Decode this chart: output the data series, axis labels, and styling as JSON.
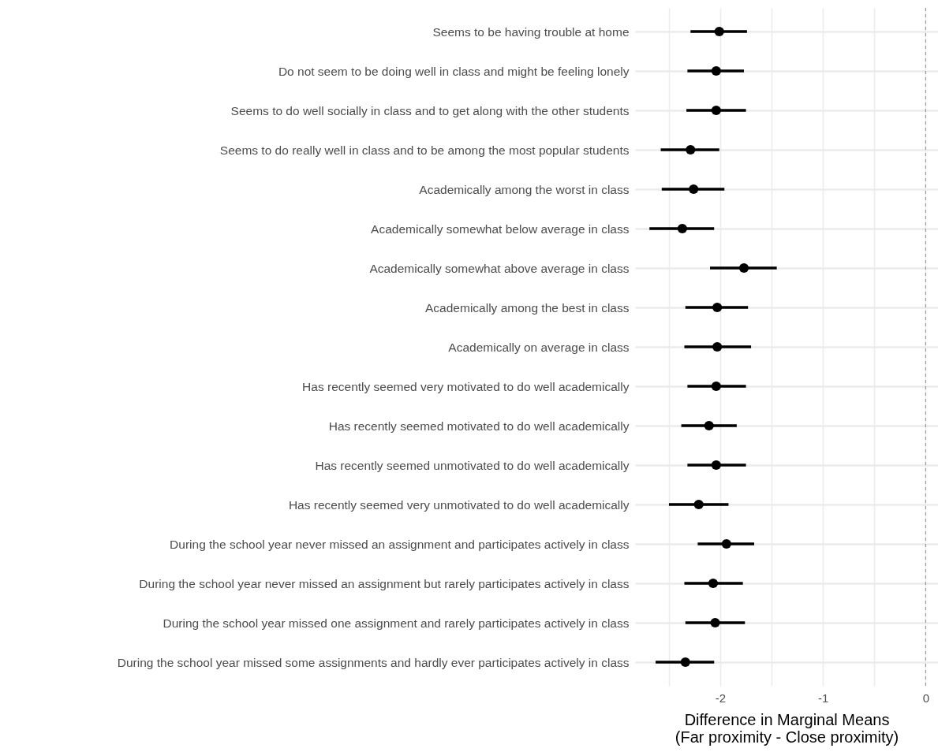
{
  "chart_data": {
    "type": "scatter",
    "categories": [
      "Seems to be having trouble at home",
      "Do not seem to be doing well in class and might be feeling lonely",
      "Seems to do well socially in class and to get along with the other students",
      "Seems to do really well in class and to be among the most popular students",
      "Academically among the worst in class",
      "Academically somewhat below average in class",
      "Academically somewhat above average in class",
      "Academically among the best in class",
      "Academically on average in class",
      "Has recently seemed very motivated to do well academically",
      "Has recently seemed motivated to do well academically",
      "Has recently seemed unmotivated to do well academically",
      "Has recently seemed very unmotivated to do well academically",
      "During the school year never missed an assignment and participates actively in class",
      "During the school year never missed an assignment but rarely participates actively in class",
      "During the school year missed one assignment and rarely participates actively in class",
      "During the school year missed some assignments and hardly ever participates actively in class"
    ],
    "orientation": "horizontal",
    "values": [
      -2.01,
      -2.04,
      -2.04,
      -2.29,
      -2.26,
      -2.37,
      -1.77,
      -2.03,
      -2.03,
      -2.04,
      -2.11,
      -2.04,
      -2.21,
      -1.94,
      -2.07,
      -2.05,
      -2.34
    ],
    "errors": [
      [
        -2.29,
        -1.74
      ],
      [
        -2.32,
        -1.77
      ],
      [
        -2.33,
        -1.75
      ],
      [
        -2.58,
        -2.01
      ],
      [
        -2.57,
        -1.96
      ],
      [
        -2.69,
        -2.06
      ],
      [
        -2.1,
        -1.45
      ],
      [
        -2.34,
        -1.73
      ],
      [
        -2.35,
        -1.7
      ],
      [
        -2.32,
        -1.75
      ],
      [
        -2.38,
        -1.84
      ],
      [
        -2.32,
        -1.75
      ],
      [
        -2.5,
        -1.92
      ],
      [
        -2.22,
        -1.67
      ],
      [
        -2.35,
        -1.78
      ],
      [
        -2.34,
        -1.76
      ],
      [
        -2.63,
        -2.06
      ]
    ],
    "color": "#000000",
    "xlabel": "Difference in Marginal Means\n(Far proximity - Close proximity)",
    "xlim": [
      -2.83,
      0.12
    ],
    "xticks": [
      {
        "value": -2.5,
        "label": null
      },
      -2,
      {
        "value": -1.5,
        "label": null
      },
      -1,
      {
        "value": -0.5,
        "label": null
      },
      0
    ],
    "ref_lines": [
      {
        "axis": "x",
        "value": 0,
        "color": "#999999",
        "line_style": "dashed"
      }
    ],
    "grid": true,
    "marker": "circle"
  }
}
